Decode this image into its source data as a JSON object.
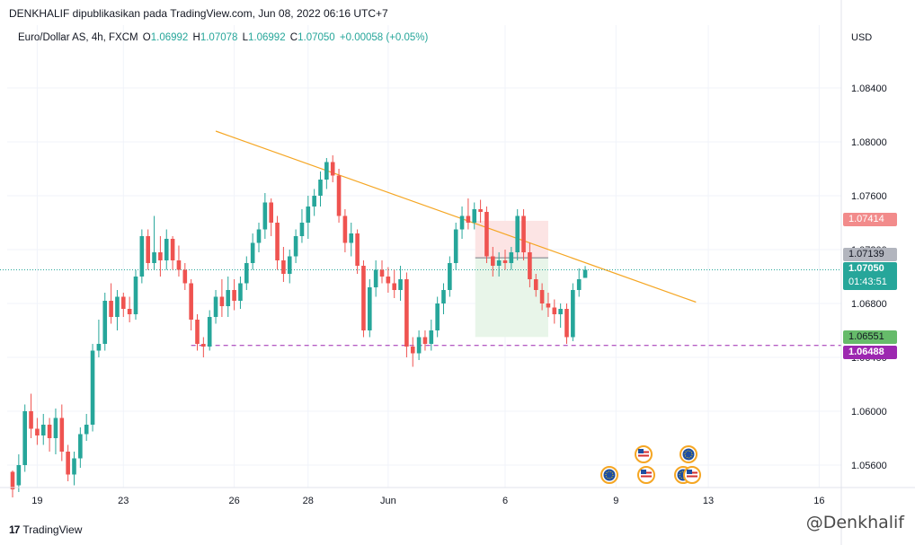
{
  "header": {
    "publisher": "DENKHALIF dipublikasikan pada TradingView.com, Jun 08, 2022 06:16 UTC+7"
  },
  "legend": {
    "symbol": "Euro/Dollar AS, 4h, FXCM",
    "o_label": "O",
    "o": "1.06992",
    "h_label": "H",
    "h": "1.07078",
    "l_label": "L",
    "l": "1.06992",
    "c_label": "C",
    "c": "1.07050",
    "change": "+0.00058 (+0.05%)"
  },
  "axis": {
    "currency": "USD",
    "y_ticks": [
      "1.08400",
      "1.08000",
      "1.07600",
      "1.07200",
      "1.06800",
      "1.06400",
      "1.06000",
      "1.05600"
    ],
    "x_ticks": [
      "19",
      "23",
      "26",
      "28",
      "Jun",
      "6",
      "9",
      "13",
      "16"
    ]
  },
  "price_labels": {
    "stop": "1.07414",
    "entry": "1.07139",
    "current": "1.07050",
    "countdown": "01:43:51",
    "target": "1.06551",
    "support": "1.06488"
  },
  "colors": {
    "up": "#26a69a",
    "down": "#ef5350",
    "trendline": "#f5a623",
    "support": "#9c27b0",
    "stop_zone": "#fce4e4",
    "target_zone": "#e8f5e9"
  },
  "chart_data": {
    "type": "candlestick",
    "symbol": "Euro/Dollar AS",
    "timeframe": "4h",
    "ylim": [
      1.0545,
      1.0875
    ],
    "x_ticks": [
      "19",
      "23",
      "26",
      "28",
      "Jun",
      "6",
      "9",
      "13",
      "16"
    ],
    "candles": [
      {
        "o": 1.0555,
        "h": 1.0556,
        "l": 1.0536,
        "c": 1.0542
      },
      {
        "o": 1.0545,
        "h": 1.0568,
        "l": 1.054,
        "c": 1.056
      },
      {
        "o": 1.056,
        "h": 1.0605,
        "l": 1.0555,
        "c": 1.06
      },
      {
        "o": 1.06,
        "h": 1.0613,
        "l": 1.058,
        "c": 1.0587
      },
      {
        "o": 1.0587,
        "h": 1.0595,
        "l": 1.0575,
        "c": 1.0582
      },
      {
        "o": 1.0582,
        "h": 1.0598,
        "l": 1.0575,
        "c": 1.059
      },
      {
        "o": 1.059,
        "h": 1.0595,
        "l": 1.057,
        "c": 1.058
      },
      {
        "o": 1.058,
        "h": 1.0602,
        "l": 1.0568,
        "c": 1.0595
      },
      {
        "o": 1.0595,
        "h": 1.0605,
        "l": 1.0563,
        "c": 1.057
      },
      {
        "o": 1.057,
        "h": 1.0575,
        "l": 1.0548,
        "c": 1.0553
      },
      {
        "o": 1.0553,
        "h": 1.057,
        "l": 1.0545,
        "c": 1.0565
      },
      {
        "o": 1.0565,
        "h": 1.0588,
        "l": 1.0558,
        "c": 1.0583
      },
      {
        "o": 1.0583,
        "h": 1.0598,
        "l": 1.0578,
        "c": 1.059
      },
      {
        "o": 1.059,
        "h": 1.065,
        "l": 1.0585,
        "c": 1.0645
      },
      {
        "o": 1.0645,
        "h": 1.0668,
        "l": 1.064,
        "c": 1.065
      },
      {
        "o": 1.065,
        "h": 1.0688,
        "l": 1.0645,
        "c": 1.0682
      },
      {
        "o": 1.0682,
        "h": 1.0695,
        "l": 1.0665,
        "c": 1.067
      },
      {
        "o": 1.067,
        "h": 1.069,
        "l": 1.066,
        "c": 1.0685
      },
      {
        "o": 1.0685,
        "h": 1.0688,
        "l": 1.067,
        "c": 1.0676
      },
      {
        "o": 1.0676,
        "h": 1.0685,
        "l": 1.0666,
        "c": 1.0672
      },
      {
        "o": 1.0672,
        "h": 1.0705,
        "l": 1.0668,
        "c": 1.07
      },
      {
        "o": 1.07,
        "h": 1.0735,
        "l": 1.0695,
        "c": 1.073
      },
      {
        "o": 1.073,
        "h": 1.0735,
        "l": 1.0705,
        "c": 1.071
      },
      {
        "o": 1.071,
        "h": 1.0745,
        "l": 1.0705,
        "c": 1.0718
      },
      {
        "o": 1.0718,
        "h": 1.073,
        "l": 1.07,
        "c": 1.0712
      },
      {
        "o": 1.0712,
        "h": 1.0735,
        "l": 1.0705,
        "c": 1.0728
      },
      {
        "o": 1.0728,
        "h": 1.073,
        "l": 1.0705,
        "c": 1.0712
      },
      {
        "o": 1.0712,
        "h": 1.0723,
        "l": 1.07,
        "c": 1.0705
      },
      {
        "o": 1.0705,
        "h": 1.071,
        "l": 1.069,
        "c": 1.0695
      },
      {
        "o": 1.0695,
        "h": 1.0698,
        "l": 1.066,
        "c": 1.0668
      },
      {
        "o": 1.0668,
        "h": 1.0672,
        "l": 1.0645,
        "c": 1.065
      },
      {
        "o": 1.065,
        "h": 1.0655,
        "l": 1.064,
        "c": 1.0648
      },
      {
        "o": 1.0648,
        "h": 1.0675,
        "l": 1.0645,
        "c": 1.067
      },
      {
        "o": 1.067,
        "h": 1.069,
        "l": 1.0665,
        "c": 1.0685
      },
      {
        "o": 1.0685,
        "h": 1.0698,
        "l": 1.067,
        "c": 1.0678
      },
      {
        "o": 1.0678,
        "h": 1.07,
        "l": 1.067,
        "c": 1.069
      },
      {
        "o": 1.069,
        "h": 1.0698,
        "l": 1.0675,
        "c": 1.0682
      },
      {
        "o": 1.0682,
        "h": 1.07,
        "l": 1.0676,
        "c": 1.0695
      },
      {
        "o": 1.0695,
        "h": 1.0715,
        "l": 1.069,
        "c": 1.071
      },
      {
        "o": 1.071,
        "h": 1.0732,
        "l": 1.0705,
        "c": 1.0725
      },
      {
        "o": 1.0725,
        "h": 1.074,
        "l": 1.0718,
        "c": 1.0735
      },
      {
        "o": 1.0735,
        "h": 1.0762,
        "l": 1.0728,
        "c": 1.0755
      },
      {
        "o": 1.0755,
        "h": 1.0758,
        "l": 1.073,
        "c": 1.074
      },
      {
        "o": 1.074,
        "h": 1.0745,
        "l": 1.0705,
        "c": 1.0712
      },
      {
        "o": 1.0712,
        "h": 1.0722,
        "l": 1.0696,
        "c": 1.0702
      },
      {
        "o": 1.0702,
        "h": 1.072,
        "l": 1.0695,
        "c": 1.0715
      },
      {
        "o": 1.0715,
        "h": 1.0735,
        "l": 1.071,
        "c": 1.073
      },
      {
        "o": 1.073,
        "h": 1.075,
        "l": 1.0725,
        "c": 1.074
      },
      {
        "o": 1.074,
        "h": 1.076,
        "l": 1.0728,
        "c": 1.0752
      },
      {
        "o": 1.0752,
        "h": 1.0765,
        "l": 1.0745,
        "c": 1.076
      },
      {
        "o": 1.076,
        "h": 1.0778,
        "l": 1.0752,
        "c": 1.0772
      },
      {
        "o": 1.0772,
        "h": 1.0788,
        "l": 1.0765,
        "c": 1.0785
      },
      {
        "o": 1.0785,
        "h": 1.079,
        "l": 1.077,
        "c": 1.0775
      },
      {
        "o": 1.0775,
        "h": 1.078,
        "l": 1.074,
        "c": 1.0745
      },
      {
        "o": 1.0745,
        "h": 1.075,
        "l": 1.0718,
        "c": 1.0725
      },
      {
        "o": 1.0725,
        "h": 1.074,
        "l": 1.0715,
        "c": 1.0732
      },
      {
        "o": 1.0732,
        "h": 1.0735,
        "l": 1.0702,
        "c": 1.0708
      },
      {
        "o": 1.0708,
        "h": 1.0712,
        "l": 1.0655,
        "c": 1.066
      },
      {
        "o": 1.066,
        "h": 1.0698,
        "l": 1.0655,
        "c": 1.0692
      },
      {
        "o": 1.0692,
        "h": 1.0712,
        "l": 1.0685,
        "c": 1.0705
      },
      {
        "o": 1.0705,
        "h": 1.0712,
        "l": 1.0695,
        "c": 1.07
      },
      {
        "o": 1.07,
        "h": 1.0707,
        "l": 1.0688,
        "c": 1.0695
      },
      {
        "o": 1.0695,
        "h": 1.0705,
        "l": 1.0684,
        "c": 1.069
      },
      {
        "o": 1.069,
        "h": 1.0708,
        "l": 1.0682,
        "c": 1.0698
      },
      {
        "o": 1.0698,
        "h": 1.0703,
        "l": 1.064,
        "c": 1.0648
      },
      {
        "o": 1.0648,
        "h": 1.0655,
        "l": 1.0633,
        "c": 1.0643
      },
      {
        "o": 1.0643,
        "h": 1.066,
        "l": 1.0638,
        "c": 1.0655
      },
      {
        "o": 1.0655,
        "h": 1.066,
        "l": 1.0645,
        "c": 1.065
      },
      {
        "o": 1.065,
        "h": 1.0668,
        "l": 1.0645,
        "c": 1.066
      },
      {
        "o": 1.066,
        "h": 1.0685,
        "l": 1.0655,
        "c": 1.068
      },
      {
        "o": 1.068,
        "h": 1.0695,
        "l": 1.0672,
        "c": 1.069
      },
      {
        "o": 1.069,
        "h": 1.0715,
        "l": 1.0685,
        "c": 1.071
      },
      {
        "o": 1.071,
        "h": 1.074,
        "l": 1.0705,
        "c": 1.0735
      },
      {
        "o": 1.0735,
        "h": 1.0752,
        "l": 1.0728,
        "c": 1.0745
      },
      {
        "o": 1.0745,
        "h": 1.0758,
        "l": 1.0735,
        "c": 1.074
      },
      {
        "o": 1.074,
        "h": 1.0755,
        "l": 1.0735,
        "c": 1.075
      },
      {
        "o": 1.075,
        "h": 1.0757,
        "l": 1.074,
        "c": 1.0748
      },
      {
        "o": 1.0748,
        "h": 1.0752,
        "l": 1.071,
        "c": 1.0715
      },
      {
        "o": 1.0715,
        "h": 1.0722,
        "l": 1.07,
        "c": 1.0708
      },
      {
        "o": 1.0708,
        "h": 1.0718,
        "l": 1.07,
        "c": 1.0712
      },
      {
        "o": 1.0712,
        "h": 1.072,
        "l": 1.0705,
        "c": 1.071
      },
      {
        "o": 1.071,
        "h": 1.0722,
        "l": 1.0705,
        "c": 1.0718
      },
      {
        "o": 1.0718,
        "h": 1.075,
        "l": 1.0712,
        "c": 1.0745
      },
      {
        "o": 1.0745,
        "h": 1.075,
        "l": 1.0712,
        "c": 1.0718
      },
      {
        "o": 1.0718,
        "h": 1.0725,
        "l": 1.0692,
        "c": 1.0698
      },
      {
        "o": 1.0698,
        "h": 1.0702,
        "l": 1.0685,
        "c": 1.069
      },
      {
        "o": 1.069,
        "h": 1.0695,
        "l": 1.0675,
        "c": 1.068
      },
      {
        "o": 1.068,
        "h": 1.0688,
        "l": 1.067,
        "c": 1.0677
      },
      {
        "o": 1.0677,
        "h": 1.0683,
        "l": 1.0665,
        "c": 1.0672
      },
      {
        "o": 1.0672,
        "h": 1.068,
        "l": 1.0662,
        "c": 1.0676
      },
      {
        "o": 1.0676,
        "h": 1.068,
        "l": 1.065,
        "c": 1.0655
      },
      {
        "o": 1.0655,
        "h": 1.0695,
        "l": 1.0652,
        "c": 1.069
      },
      {
        "o": 1.069,
        "h": 1.0706,
        "l": 1.0685,
        "c": 1.0698
      },
      {
        "o": 1.0699,
        "h": 1.07078,
        "l": 1.0699,
        "c": 1.0705
      }
    ],
    "trendline": {
      "start": {
        "candle": 33,
        "price": 1.0808
      },
      "end": {
        "candle": 111,
        "price": 1.0681
      }
    },
    "support_line": {
      "price": 1.06488,
      "start_candle": 29
    },
    "position": {
      "type": "short",
      "entry": 1.07139,
      "stop": 1.07414,
      "target": 1.06551,
      "start_candle": 75,
      "end_candle": 87
    }
  },
  "events": [
    {
      "name": "eu-flag-icon"
    },
    {
      "name": "us-flag-icon"
    },
    {
      "name": "us-flag-icon"
    },
    {
      "name": "eu-flag-icon"
    },
    {
      "name": "eu-flag-icon"
    },
    {
      "name": "us-flag-icon"
    }
  ],
  "branding": {
    "tradingview": "TradingView",
    "logo_text": "17",
    "watermark": "@Denkhalif"
  }
}
